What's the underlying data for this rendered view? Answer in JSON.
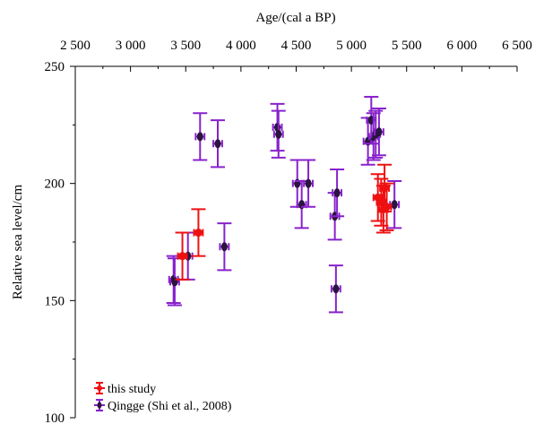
{
  "chart_data": {
    "type": "scatter",
    "title": "",
    "xlabel": "Age/(cal a BP)",
    "ylabel": "Relative sea level/cm",
    "x_axis_position": "top",
    "xlim": [
      2500,
      6500
    ],
    "ylim": [
      100,
      250
    ],
    "x_ticks": [
      2500,
      3000,
      3500,
      4000,
      4500,
      5000,
      5500,
      6000,
      6500
    ],
    "x_tick_labels": [
      "2 500",
      "3 000",
      "3 500",
      "4 000",
      "4 500",
      "5 000",
      "5 500",
      "6 000",
      "6 500"
    ],
    "y_ticks": [
      100,
      150,
      200,
      250
    ],
    "y_tick_labels": [
      "100",
      "150",
      "200",
      "250"
    ],
    "grid": false,
    "legend_position": "bottom-left",
    "series": [
      {
        "name": "this study",
        "color": "#ee1111",
        "marker": "circle",
        "points": [
          {
            "x": 3470,
            "y": 169,
            "yerr": 10,
            "xerr": 40
          },
          {
            "x": 3615,
            "y": 179,
            "yerr": 10,
            "xerr": 40
          },
          {
            "x": 5240,
            "y": 194,
            "yerr": 10,
            "xerr": 40
          },
          {
            "x": 5270,
            "y": 192,
            "yerr": 10,
            "xerr": 40
          },
          {
            "x": 5290,
            "y": 189,
            "yerr": 10,
            "xerr": 40
          },
          {
            "x": 5300,
            "y": 198,
            "yerr": 10,
            "xerr": 40
          },
          {
            "x": 5320,
            "y": 190,
            "yerr": 10,
            "xerr": 40
          }
        ]
      },
      {
        "name": "Qingge (Shi et al., 2008)",
        "color": "#8822cc",
        "marker": "diamond",
        "points": [
          {
            "x": 3390,
            "y": 159,
            "yerr": 10,
            "xerr": 40
          },
          {
            "x": 3400,
            "y": 158,
            "yerr": 10,
            "xerr": 40
          },
          {
            "x": 3520,
            "y": 169,
            "yerr": 10,
            "xerr": 40
          },
          {
            "x": 3630,
            "y": 220,
            "yerr": 10,
            "xerr": 40
          },
          {
            "x": 3790,
            "y": 217,
            "yerr": 10,
            "xerr": 40
          },
          {
            "x": 3850,
            "y": 173,
            "yerr": 10,
            "xerr": 40
          },
          {
            "x": 4330,
            "y": 224,
            "yerr": 10,
            "xerr": 40
          },
          {
            "x": 4340,
            "y": 221,
            "yerr": 10,
            "xerr": 40
          },
          {
            "x": 4510,
            "y": 200,
            "yerr": 10,
            "xerr": 40
          },
          {
            "x": 4550,
            "y": 191,
            "yerr": 10,
            "xerr": 40
          },
          {
            "x": 4610,
            "y": 200,
            "yerr": 10,
            "xerr": 40
          },
          {
            "x": 4850,
            "y": 186,
            "yerr": 10,
            "xerr": 40
          },
          {
            "x": 4870,
            "y": 196,
            "yerr": 10,
            "xerr": 40
          },
          {
            "x": 4860,
            "y": 155,
            "yerr": 10,
            "xerr": 40
          },
          {
            "x": 5150,
            "y": 218,
            "yerr": 10,
            "xerr": 40
          },
          {
            "x": 5180,
            "y": 227,
            "yerr": 10,
            "xerr": 40
          },
          {
            "x": 5200,
            "y": 220,
            "yerr": 10,
            "xerr": 40
          },
          {
            "x": 5220,
            "y": 221,
            "yerr": 10,
            "xerr": 40
          },
          {
            "x": 5250,
            "y": 222,
            "yerr": 10,
            "xerr": 40
          },
          {
            "x": 5390,
            "y": 191,
            "yerr": 10,
            "xerr": 40
          }
        ]
      }
    ]
  }
}
